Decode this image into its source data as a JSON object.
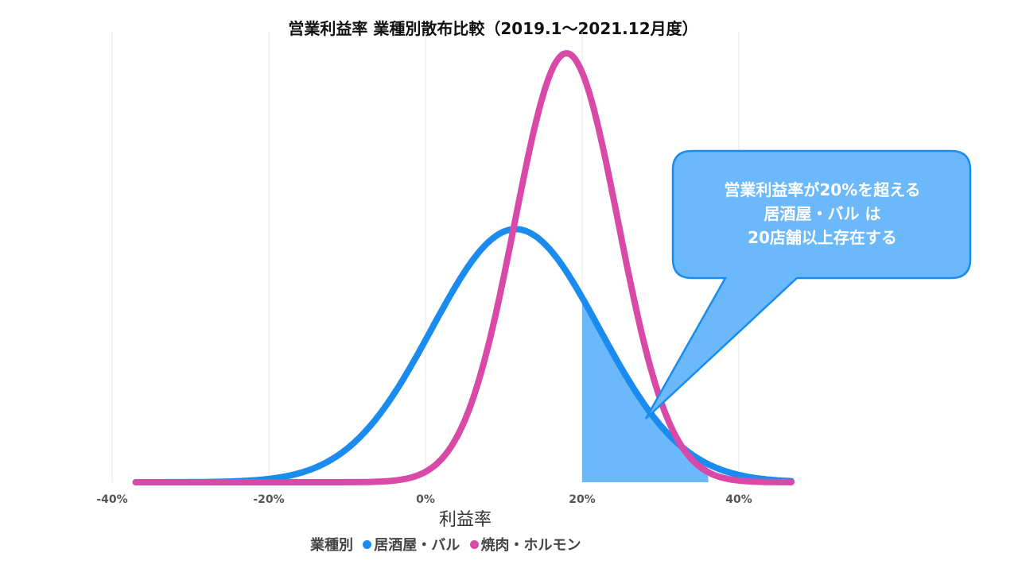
{
  "chart_data": {
    "type": "area",
    "title": "営業利益率 業種別散布比較（2019.1～2021.12月度）",
    "xlabel": "利益率",
    "ylabel": "",
    "x_ticks": [
      "-40%",
      "-20%",
      "0%",
      "20%",
      "40%"
    ],
    "xlim": [
      -0.4,
      0.47
    ],
    "grid": true,
    "legend": {
      "title": "業種別",
      "placement": "bottom",
      "entries": [
        "居酒屋・バル",
        "焼肉・ホルモン"
      ]
    },
    "series": [
      {
        "name": "居酒屋・バル",
        "color": "#1a8cf0",
        "distribution": "normal",
        "mean": 0.115,
        "sd": 0.107,
        "relative_peak": 0.59
      },
      {
        "name": "焼肉・ホルモン",
        "color": "#d94aa8",
        "distribution": "normal",
        "mean": 0.18,
        "sd": 0.066,
        "relative_peak": 1.0
      }
    ],
    "highlight": {
      "series": "居酒屋・バル",
      "from_x": 0.2,
      "color": "#6bb8fb"
    },
    "annotation": {
      "lines": [
        "営業利益率が20%を超える",
        "居酒屋・バル は",
        "20店舗以上存在する"
      ]
    }
  }
}
